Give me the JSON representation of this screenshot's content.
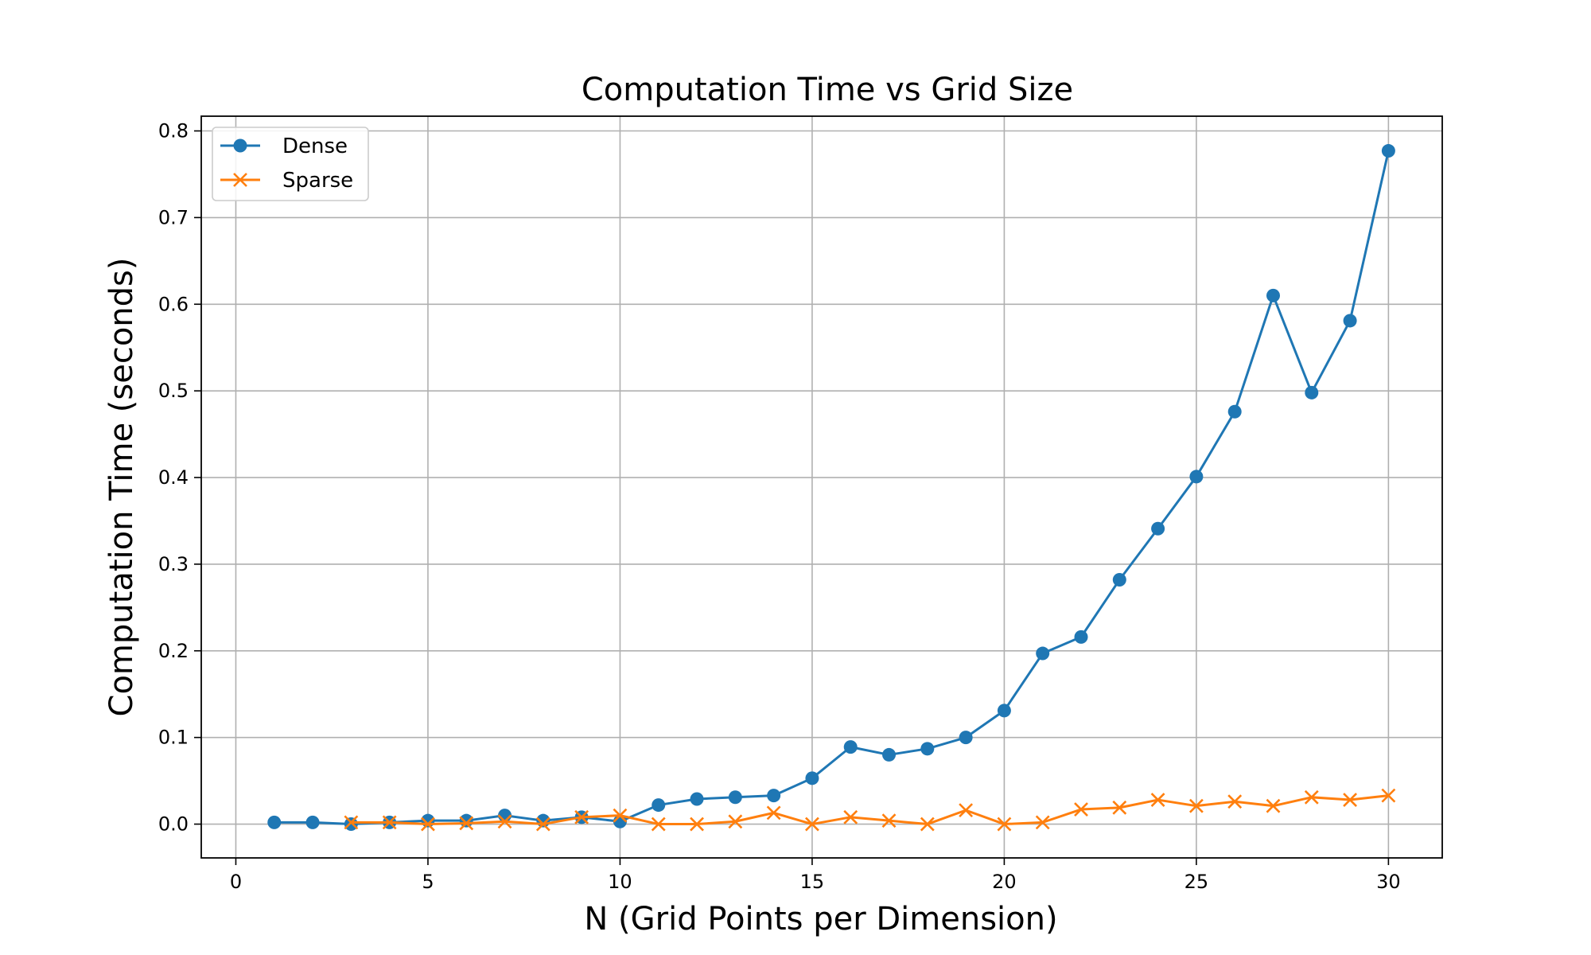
{
  "chart_data": {
    "type": "line",
    "title": "Computation Time vs Grid Size",
    "xlabel": "N (Grid Points per Dimension)",
    "ylabel": "Computation Time (seconds)",
    "xlim": [
      -0.9,
      31.4
    ],
    "ylim": [
      -0.039,
      0.817
    ],
    "xticks": [
      0,
      5,
      10,
      15,
      20,
      25,
      30
    ],
    "xtick_labels": [
      "0",
      "5",
      "10",
      "15",
      "20",
      "25",
      "30"
    ],
    "yticks": [
      0.0,
      0.1,
      0.2,
      0.3,
      0.4,
      0.5,
      0.6,
      0.7,
      0.8
    ],
    "ytick_labels": [
      "0.0",
      "0.1",
      "0.2",
      "0.3",
      "0.4",
      "0.5",
      "0.6",
      "0.7",
      "0.8"
    ],
    "grid": true,
    "legend_position": "top-left",
    "series": [
      {
        "name": "Dense",
        "color": "#1f77b4",
        "marker": "circle",
        "x": [
          1,
          2,
          3,
          4,
          5,
          6,
          7,
          8,
          9,
          10,
          11,
          12,
          13,
          14,
          15,
          16,
          17,
          18,
          19,
          20,
          21,
          22,
          23,
          24,
          25,
          26,
          27,
          28,
          29,
          30
        ],
        "y": [
          0.002,
          0.002,
          0.0,
          0.002,
          0.004,
          0.004,
          0.01,
          0.004,
          0.008,
          0.003,
          0.022,
          0.029,
          0.031,
          0.033,
          0.053,
          0.089,
          0.08,
          0.087,
          0.1,
          0.131,
          0.197,
          0.216,
          0.282,
          0.341,
          0.401,
          0.476,
          0.61,
          0.498,
          0.581,
          0.777
        ]
      },
      {
        "name": "Sparse",
        "color": "#ff7f0e",
        "marker": "x",
        "x": [
          3,
          4,
          5,
          6,
          7,
          8,
          9,
          10,
          11,
          12,
          13,
          14,
          15,
          16,
          17,
          18,
          19,
          20,
          21,
          22,
          23,
          24,
          25,
          26,
          27,
          28,
          29,
          30
        ],
        "y": [
          0.002,
          0.002,
          0.0,
          0.001,
          0.003,
          0.0,
          0.008,
          0.01,
          0.0,
          0.0,
          0.003,
          0.013,
          0.0,
          0.008,
          0.004,
          0.0,
          0.016,
          0.0,
          0.002,
          0.017,
          0.019,
          0.028,
          0.021,
          0.026,
          0.021,
          0.031,
          0.028,
          0.033
        ]
      }
    ]
  }
}
